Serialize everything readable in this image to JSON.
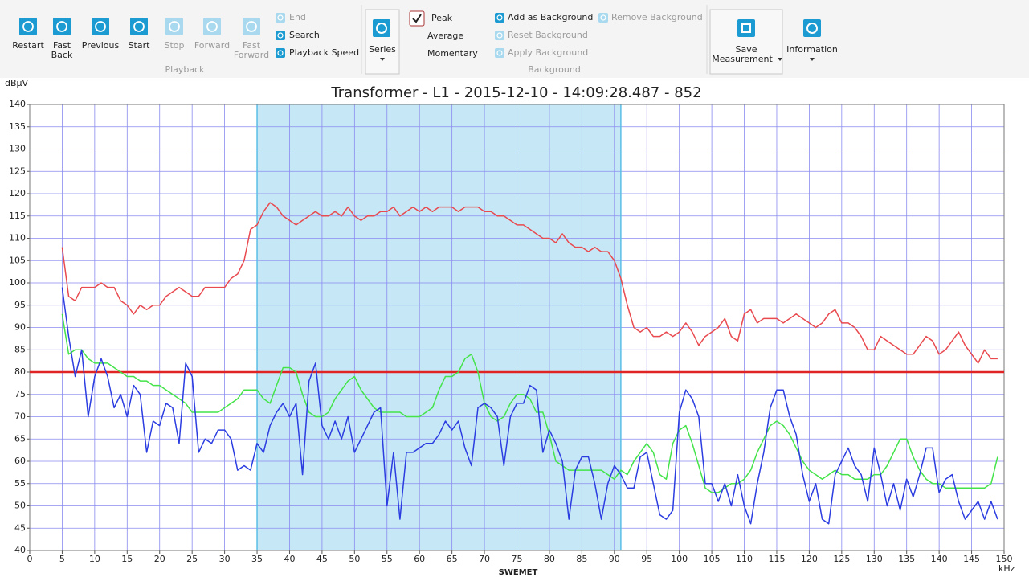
{
  "ribbon": {
    "playback": {
      "buttons": [
        {
          "label": [
            "Restart"
          ],
          "enabled": true
        },
        {
          "label": [
            "Fast",
            "Back"
          ],
          "enabled": true
        },
        {
          "label": [
            "Previous"
          ],
          "enabled": true
        },
        {
          "label": [
            "Start"
          ],
          "enabled": true
        },
        {
          "label": [
            "Stop"
          ],
          "enabled": false
        },
        {
          "label": [
            "Forward"
          ],
          "enabled": false
        },
        {
          "label": [
            "Fast",
            "Forward"
          ],
          "enabled": false
        }
      ],
      "options": [
        {
          "label": "End",
          "enabled": false
        },
        {
          "label": "Search",
          "enabled": true
        },
        {
          "label": "Playback Speed",
          "enabled": true
        }
      ],
      "group": "Playback"
    },
    "series": "Series",
    "display": [
      {
        "label": "Peak",
        "checked": true
      },
      {
        "label": "Average",
        "checked": false
      },
      {
        "label": "Momentary",
        "checked": false
      }
    ],
    "background": {
      "options": [
        {
          "label": "Add as Background",
          "enabled": true
        },
        {
          "label": "Remove Background",
          "enabled": false
        },
        {
          "label": "Reset Background",
          "enabled": false
        },
        {
          "label": "Apply Background",
          "enabled": false
        }
      ],
      "group": "Background"
    },
    "save": [
      "Save",
      "Measurement"
    ],
    "information": "Information"
  },
  "chart_data": {
    "type": "line",
    "title": "Transformer - L1 - 2015-12-10  - 14:09:28.487 - 852",
    "y_label": "dBµV",
    "x_label": "kHz",
    "logo": "SWEMET",
    "xlim": [
      0,
      150
    ],
    "ylim": [
      40,
      140
    ],
    "xticks": [
      0,
      5,
      10,
      15,
      20,
      25,
      30,
      35,
      40,
      45,
      50,
      55,
      60,
      65,
      70,
      75,
      80,
      85,
      90,
      95,
      100,
      105,
      110,
      115,
      120,
      125,
      130,
      135,
      140,
      145,
      150
    ],
    "yticks": [
      40,
      45,
      50,
      55,
      60,
      65,
      70,
      75,
      80,
      85,
      90,
      95,
      100,
      105,
      110,
      115,
      120,
      125,
      130,
      135,
      140
    ],
    "grid": true,
    "grid_color": "#8a8af0",
    "threshold": {
      "value": 80,
      "color": "#e02424"
    },
    "highlight": {
      "xlim": [
        35,
        91
      ],
      "color": "#5bbde6"
    },
    "x": [
      5,
      6,
      7,
      8,
      9,
      10,
      11,
      12,
      13,
      14,
      15,
      16,
      17,
      18,
      19,
      20,
      21,
      22,
      23,
      24,
      25,
      26,
      27,
      28,
      29,
      30,
      31,
      32,
      33,
      34,
      35,
      36,
      37,
      38,
      39,
      40,
      41,
      42,
      43,
      44,
      45,
      46,
      47,
      48,
      49,
      50,
      51,
      52,
      53,
      54,
      55,
      56,
      57,
      58,
      59,
      60,
      61,
      62,
      63,
      64,
      65,
      66,
      67,
      68,
      69,
      70,
      71,
      72,
      73,
      74,
      75,
      76,
      77,
      78,
      79,
      80,
      81,
      82,
      83,
      84,
      85,
      86,
      87,
      88,
      89,
      90,
      91,
      92,
      93,
      94,
      95,
      96,
      97,
      98,
      99,
      100,
      101,
      102,
      103,
      104,
      105,
      106,
      107,
      108,
      109,
      110,
      111,
      112,
      113,
      114,
      115,
      116,
      117,
      118,
      119,
      120,
      121,
      122,
      123,
      124,
      125,
      126,
      127,
      128,
      129,
      130,
      131,
      132,
      133,
      134,
      135,
      136,
      137,
      138,
      139,
      140,
      141,
      142,
      143,
      144,
      145,
      146,
      147,
      148,
      149
    ],
    "series": [
      {
        "name": "Peak",
        "color": "#e84a4f",
        "values": [
          108,
          97,
          96,
          99,
          99,
          99,
          100,
          99,
          99,
          96,
          95,
          93,
          95,
          94,
          95,
          95,
          97,
          98,
          99,
          98,
          97,
          97,
          99,
          99,
          99,
          99,
          101,
          102,
          105,
          112,
          113,
          116,
          118,
          117,
          115,
          114,
          113,
          114,
          115,
          116,
          115,
          115,
          116,
          115,
          117,
          115,
          114,
          115,
          115,
          116,
          116,
          117,
          115,
          116,
          117,
          116,
          117,
          116,
          117,
          117,
          117,
          116,
          117,
          117,
          117,
          116,
          116,
          115,
          115,
          114,
          113,
          113,
          112,
          111,
          110,
          110,
          109,
          111,
          109,
          108,
          108,
          107,
          108,
          107,
          107,
          105,
          101,
          95,
          90,
          89,
          90,
          88,
          88,
          89,
          88,
          89,
          91,
          89,
          86,
          88,
          89,
          90,
          92,
          88,
          87,
          93,
          94,
          91,
          92,
          92,
          92,
          91,
          92,
          93,
          92,
          91,
          90,
          91,
          93,
          94,
          91,
          91,
          90,
          88,
          85,
          85,
          88,
          87,
          86,
          85,
          84,
          84,
          86,
          88,
          87,
          84,
          85,
          87,
          89,
          86,
          84,
          82,
          85,
          83,
          83
        ]
      },
      {
        "name": "Average",
        "color": "#44e34a",
        "values": [
          93,
          84,
          85,
          85,
          83,
          82,
          82,
          82,
          81,
          80,
          79,
          79,
          78,
          78,
          77,
          77,
          76,
          75,
          74,
          73,
          71,
          71,
          71,
          71,
          71,
          72,
          73,
          74,
          76,
          76,
          76,
          74,
          73,
          77,
          81,
          81,
          80,
          75,
          71,
          70,
          70,
          71,
          74,
          76,
          78,
          79,
          76,
          74,
          72,
          71,
          71,
          71,
          71,
          70,
          70,
          70,
          71,
          72,
          76,
          79,
          79,
          80,
          83,
          84,
          80,
          73,
          70,
          69,
          70,
          73,
          75,
          75,
          74,
          71,
          71,
          66,
          60,
          59,
          58,
          58,
          58,
          58,
          58,
          58,
          57,
          56,
          58,
          57,
          60,
          62,
          64,
          62,
          57,
          56,
          64,
          67,
          68,
          64,
          59,
          54,
          53,
          53,
          54,
          55,
          55,
          56,
          58,
          62,
          65,
          68,
          69,
          68,
          66,
          63,
          60,
          58,
          57,
          56,
          57,
          58,
          57,
          57,
          56,
          56,
          56,
          57,
          57,
          59,
          62,
          65,
          65,
          61,
          58,
          56,
          55,
          55,
          54,
          54,
          54,
          54,
          54,
          54,
          54,
          55,
          61
        ]
      },
      {
        "name": "Momentary",
        "color": "#2b3de0",
        "values": [
          99,
          88,
          79,
          85,
          70,
          79,
          83,
          79,
          72,
          75,
          70,
          77,
          75,
          62,
          69,
          68,
          73,
          72,
          64,
          82,
          79,
          62,
          65,
          64,
          67,
          67,
          65,
          58,
          59,
          58,
          64,
          62,
          68,
          71,
          73,
          70,
          73,
          57,
          78,
          82,
          68,
          65,
          69,
          65,
          70,
          62,
          65,
          68,
          71,
          72,
          50,
          62,
          47,
          62,
          62,
          63,
          64,
          64,
          66,
          69,
          67,
          69,
          63,
          59,
          72,
          73,
          72,
          70,
          59,
          70,
          73,
          73,
          77,
          76,
          62,
          67,
          64,
          60,
          47,
          58,
          61,
          61,
          55,
          47,
          55,
          59,
          57,
          54,
          54,
          61,
          62,
          55,
          48,
          47,
          49,
          71,
          76,
          74,
          70,
          55,
          55,
          51,
          55,
          50,
          57,
          50,
          46,
          55,
          62,
          72,
          76,
          76,
          70,
          66,
          57,
          51,
          55,
          47,
          46,
          57,
          60,
          63,
          59,
          57,
          51,
          63,
          57,
          50,
          55,
          49,
          56,
          52,
          57,
          63,
          63,
          53,
          56,
          57,
          51,
          47,
          49,
          51,
          47,
          51,
          47
        ]
      }
    ]
  }
}
